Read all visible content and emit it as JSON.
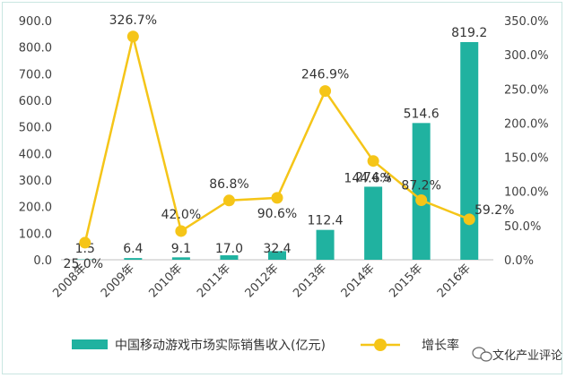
{
  "chart_data": {
    "type": "bar+line",
    "categories": [
      "2008年",
      "2009年",
      "2010年",
      "2011年",
      "2012年",
      "2013年",
      "2014年",
      "2015年",
      "2016年"
    ],
    "series": [
      {
        "name": "中国移动游戏市场实际销售收入(亿元)",
        "type": "bar",
        "axis": "left",
        "values": [
          1.5,
          6.4,
          9.1,
          17.0,
          32.4,
          112.4,
          274.9,
          514.6,
          819.2
        ],
        "labels": [
          "1.5",
          "6.4",
          "9.1",
          "17.0",
          "32.4",
          "112.4",
          "274.9",
          "514.6",
          "819.2"
        ]
      },
      {
        "name": "增长率",
        "type": "line",
        "axis": "right",
        "values": [
          25.0,
          326.7,
          42.0,
          86.8,
          90.6,
          246.9,
          144.6,
          87.2,
          59.2
        ],
        "labels": [
          "25.0%",
          "326.7%",
          "42.0%",
          "86.8%",
          "90.6%",
          "246.9%",
          "144.6%",
          "87.2%",
          "59.2%"
        ]
      }
    ],
    "y_left": {
      "ylim": [
        0,
        900
      ],
      "ticks": [
        "0.0",
        "100.0",
        "200.0",
        "300.0",
        "400.0",
        "500.0",
        "600.0",
        "700.0",
        "800.0",
        "900.0"
      ]
    },
    "y_right": {
      "ylim": [
        0,
        350
      ],
      "ticks": [
        "0.0%",
        "50.0%",
        "100.0%",
        "150.0%",
        "200.0%",
        "250.0%",
        "300.0%",
        "350.0%"
      ]
    },
    "grid": false,
    "legend_position": "bottom",
    "colors": {
      "bar": "#20b2a0",
      "line": "#f5c518"
    }
  },
  "watermark": {
    "text": "文化产业评论"
  }
}
